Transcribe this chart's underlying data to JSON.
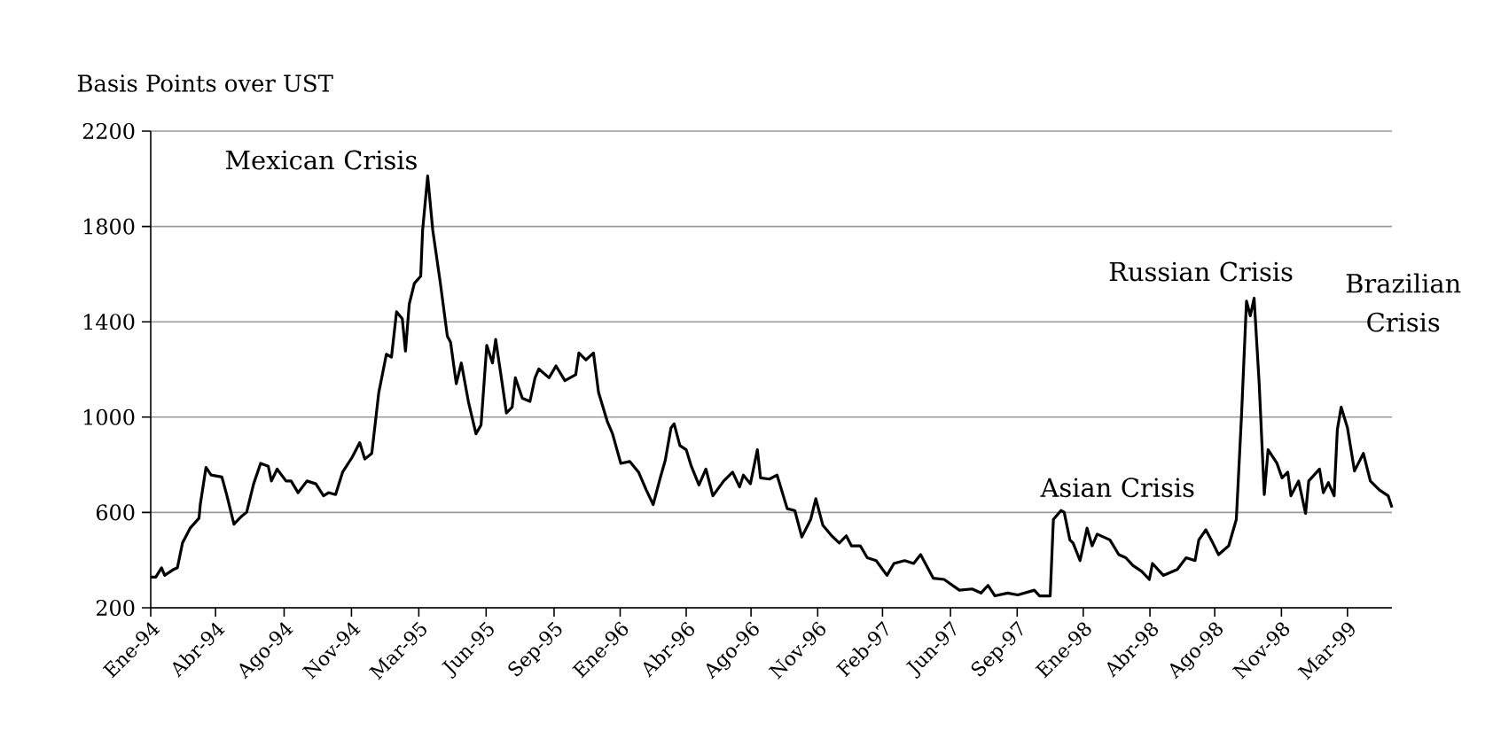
{
  "chart_data": {
    "type": "line",
    "ylabel": "Basis Points over UST",
    "x": [
      "1994-01-03",
      "1994-01-11",
      "1994-01-20",
      "1994-01-25",
      "1994-02-08",
      "1994-02-14",
      "1994-02-22",
      "1994-03-06",
      "1994-03-20",
      "1994-03-22",
      "1994-03-31",
      "1994-04-08",
      "1994-04-25",
      "1994-05-03",
      "1994-05-14",
      "1994-05-26",
      "1994-06-03",
      "1994-06-14",
      "1994-06-25",
      "1994-07-07",
      "1994-07-12",
      "1994-07-21",
      "1994-08-04",
      "1994-08-12",
      "1994-08-23",
      "1994-09-06",
      "1994-09-20",
      "1994-10-02",
      "1994-10-10",
      "1994-10-21",
      "1994-11-01",
      "1994-11-16",
      "1994-11-28",
      "1994-12-06",
      "1994-12-17",
      "1994-12-28",
      "1995-01-09",
      "1995-01-17",
      "1995-01-25",
      "1995-02-03",
      "1995-02-08",
      "1995-02-14",
      "1995-02-22",
      "1995-03-04",
      "1995-03-07",
      "1995-03-15",
      "1995-03-23",
      "1995-04-04",
      "1995-04-15",
      "1995-04-20",
      "1995-04-29",
      "1995-05-07",
      "1995-05-18",
      "1995-05-30",
      "1995-06-07",
      "1995-06-16",
      "1995-06-25",
      "1995-06-30",
      "1995-07-09",
      "1995-07-17",
      "1995-07-26",
      "1995-07-31",
      "1995-08-11",
      "1995-08-23",
      "1995-08-31",
      "1995-09-06",
      "1995-09-22",
      "1995-10-03",
      "1995-10-17",
      "1995-11-03",
      "1995-11-08",
      "1995-11-19",
      "1995-12-01",
      "1995-12-09",
      "1995-12-23",
      "1995-12-31",
      "1996-01-13",
      "1996-01-27",
      "1996-02-10",
      "1996-02-22",
      "1996-03-04",
      "1996-03-15",
      "1996-03-23",
      "1996-04-01",
      "1996-04-06",
      "1996-04-15",
      "1996-04-25",
      "1996-05-03",
      "1996-05-15",
      "1996-05-26",
      "1996-06-06",
      "1996-06-23",
      "1996-07-07",
      "1996-07-18",
      "1996-07-24",
      "1996-08-04",
      "1996-08-15",
      "1996-08-20",
      "1996-09-03",
      "1996-09-15",
      "1996-10-01",
      "1996-10-13",
      "1996-10-24",
      "1996-11-07",
      "1996-11-15",
      "1996-11-26",
      "1996-12-10",
      "1996-12-22",
      "1997-01-02",
      "1997-01-10",
      "1997-01-24",
      "1997-02-04",
      "1997-02-18",
      "1997-03-07",
      "1997-03-18",
      "1997-04-04",
      "1997-04-18",
      "1997-04-29",
      "1997-05-19",
      "1997-06-05",
      "1997-06-29",
      "1997-07-19",
      "1997-08-02",
      "1997-08-13",
      "1997-08-24",
      "1997-09-13",
      "1997-09-29",
      "1997-10-25",
      "1997-11-02",
      "1997-11-19",
      "1997-11-24",
      "1997-12-06",
      "1997-12-11",
      "1997-12-20",
      "1997-12-25",
      "1998-01-05",
      "1998-01-16",
      "1998-01-24",
      "1998-02-01",
      "1998-02-21",
      "1998-03-07",
      "1998-03-18",
      "1998-03-29",
      "1998-04-12",
      "1998-04-24",
      "1998-04-29",
      "1998-05-16",
      "1998-06-07",
      "1998-06-21",
      "1998-07-05",
      "1998-07-11",
      "1998-07-22",
      "1998-08-02",
      "1998-08-11",
      "1998-08-27",
      "1998-09-08",
      "1998-09-16",
      "1998-09-24",
      "1998-09-30",
      "1998-10-06",
      "1998-10-14",
      "1998-10-22",
      "1998-10-28",
      "1998-11-11",
      "1998-11-19",
      "1998-11-28",
      "1998-12-03",
      "1998-12-15",
      "1998-12-26",
      "1998-12-31",
      "1999-01-17",
      "1999-01-23",
      "1999-01-31",
      "1999-02-09",
      "1999-02-14",
      "1999-02-20",
      "1999-03-02",
      "1999-03-13",
      "1999-03-27",
      "1999-04-07",
      "1999-04-21",
      "1999-05-05",
      "1999-05-11"
    ],
    "values": [
      329,
      329,
      368,
      336,
      361,
      368,
      472,
      534,
      576,
      633,
      789,
      757,
      749,
      670,
      551,
      584,
      601,
      720,
      806,
      794,
      732,
      782,
      732,
      732,
      683,
      732,
      720,
      670,
      683,
      675,
      769,
      831,
      893,
      824,
      848,
      1103,
      1264,
      1252,
      1442,
      1413,
      1277,
      1475,
      1561,
      1591,
      1784,
      2012,
      1784,
      1561,
      1339,
      1314,
      1140,
      1227,
      1066,
      930,
      967,
      1301,
      1227,
      1326,
      1165,
      1017,
      1042,
      1165,
      1079,
      1066,
      1165,
      1202,
      1165,
      1215,
      1153,
      1178,
      1269,
      1240,
      1269,
      1103,
      980,
      930,
      806,
      814,
      769,
      695,
      633,
      744,
      819,
      955,
      972,
      881,
      863,
      794,
      715,
      782,
      670,
      732,
      769,
      707,
      757,
      720,
      863,
      745,
      740,
      757,
      616,
      608,
      497,
      571,
      658,
      547,
      502,
      472,
      502,
      460,
      460,
      410,
      398,
      336,
      386,
      398,
      386,
      423,
      324,
      319,
      274,
      279,
      262,
      294,
      250,
      262,
      254,
      274,
      250,
      250,
      571,
      608,
      601,
      485,
      472,
      398,
      534,
      460,
      509,
      485,
      423,
      410,
      378,
      353,
      319,
      386,
      336,
      361,
      410,
      398,
      485,
      527,
      472,
      423,
      460,
      571,
      997,
      1487,
      1425,
      1499,
      1140,
      675,
      863,
      806,
      745,
      769,
      670,
      732,
      596,
      732,
      782,
      683,
      725,
      670,
      947,
      1042,
      955,
      774,
      848,
      732,
      695,
      670,
      621
    ],
    "color": "#000000",
    "line_style": "solid",
    "xlim": [
      "1994-01-03",
      "1999-05-11"
    ],
    "xticks": [
      {
        "value": "1994-01-03",
        "label": "Ene-94"
      },
      {
        "value": "1994-04-15",
        "label": "Abr-94"
      },
      {
        "value": "1994-08-01",
        "label": "Ago-94"
      },
      {
        "value": "1994-11-15",
        "label": "Nov-94"
      },
      {
        "value": "1995-03-01",
        "label": "Mar-95"
      },
      {
        "value": "1995-06-15",
        "label": "Jun-95"
      },
      {
        "value": "1995-09-30",
        "label": "Sep-95"
      },
      {
        "value": "1996-01-12",
        "label": "Ene-96"
      },
      {
        "value": "1996-04-25",
        "label": "Abr-96"
      },
      {
        "value": "1996-08-05",
        "label": "Ago-96"
      },
      {
        "value": "1996-11-18",
        "label": "Nov-96"
      },
      {
        "value": "1997-02-28",
        "label": "Feb-97"
      },
      {
        "value": "1997-06-15",
        "label": "Jun-97"
      },
      {
        "value": "1997-09-28",
        "label": "Sep-97"
      },
      {
        "value": "1998-01-10",
        "label": "Ene-98"
      },
      {
        "value": "1998-04-25",
        "label": "Abr-98"
      },
      {
        "value": "1998-08-05",
        "label": "Ago-98"
      },
      {
        "value": "1998-11-18",
        "label": "Nov-98"
      },
      {
        "value": "1999-03-02",
        "label": "Mar-99"
      }
    ],
    "ylim": [
      200,
      2200
    ],
    "yticks": [
      200,
      600,
      1000,
      1400,
      1800,
      2200
    ],
    "grid": "y",
    "annotations": [
      {
        "text": "Mexican Crisis",
        "x": "1995-03-15",
        "y": 2012
      },
      {
        "text": "Asian Crisis",
        "x": "1997-12-06",
        "y": 608
      },
      {
        "text": "Russian Crisis",
        "x": "1998-10-06",
        "y": 1499
      },
      {
        "text": "Brazilian Crisis",
        "x": "1999-02-20",
        "y": 1042
      }
    ]
  }
}
